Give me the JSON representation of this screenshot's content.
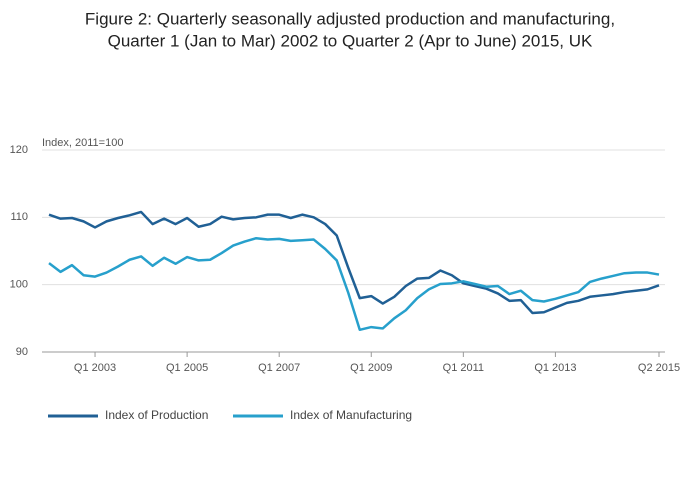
{
  "chart_data": {
    "type": "line",
    "title": [
      "Figure 2: Quarterly seasonally adjusted production and manufacturing,",
      "Quarter 1 (Jan to Mar) 2002 to Quarter 2 (Apr to June) 2015, UK"
    ],
    "y_label": "Index, 2011=100",
    "categories": [
      null,
      null,
      null,
      null,
      "Q1 2003",
      null,
      null,
      null,
      null,
      null,
      null,
      null,
      "Q1 2005",
      null,
      null,
      null,
      null,
      null,
      null,
      null,
      "Q1 2007",
      null,
      null,
      null,
      null,
      null,
      null,
      null,
      "Q1 2009",
      null,
      null,
      null,
      null,
      null,
      null,
      null,
      "Q1 2011",
      null,
      null,
      null,
      null,
      null,
      null,
      null,
      "Q1 2013",
      null,
      null,
      null,
      null,
      null,
      null,
      null,
      null,
      "Q2 2015"
    ],
    "series": [
      {
        "name": "Index of Production",
        "color": "#206095",
        "values": [
          110.4,
          109.8,
          109.9,
          109.4,
          108.5,
          109.4,
          109.9,
          110.3,
          110.8,
          109.0,
          109.8,
          109.0,
          109.9,
          108.6,
          109.0,
          110.1,
          109.7,
          109.9,
          110.0,
          110.4,
          110.4,
          109.9,
          110.4,
          110.0,
          109.0,
          107.3,
          102.5,
          98.0,
          98.3,
          97.2,
          98.2,
          99.8,
          100.9,
          101.0,
          102.1,
          101.4,
          100.2,
          99.8,
          99.4,
          98.7,
          97.6,
          97.7,
          95.8,
          95.9,
          96.6,
          97.3,
          97.6,
          98.2,
          98.4,
          98.6,
          98.9,
          99.1,
          99.3,
          99.9
        ]
      },
      {
        "name": "Index of Manufacturing",
        "color": "#27a0cc",
        "values": [
          103.2,
          101.9,
          102.9,
          101.4,
          101.2,
          101.8,
          102.7,
          103.7,
          104.2,
          102.8,
          104.0,
          103.1,
          104.1,
          103.6,
          103.7,
          104.7,
          105.8,
          106.4,
          106.9,
          106.7,
          106.8,
          106.5,
          106.6,
          106.7,
          105.3,
          103.6,
          98.8,
          93.3,
          93.7,
          93.5,
          95.0,
          96.2,
          98.0,
          99.3,
          100.1,
          100.2,
          100.5,
          100.1,
          99.7,
          99.8,
          98.6,
          99.1,
          97.7,
          97.5,
          97.9,
          98.4,
          98.9,
          100.4,
          100.9,
          101.3,
          101.7,
          101.8,
          101.8,
          101.5
        ]
      }
    ],
    "ylim": [
      90,
      120
    ],
    "yticks": [
      90,
      100,
      110,
      120
    ],
    "grid": true,
    "legend": "bottom"
  }
}
